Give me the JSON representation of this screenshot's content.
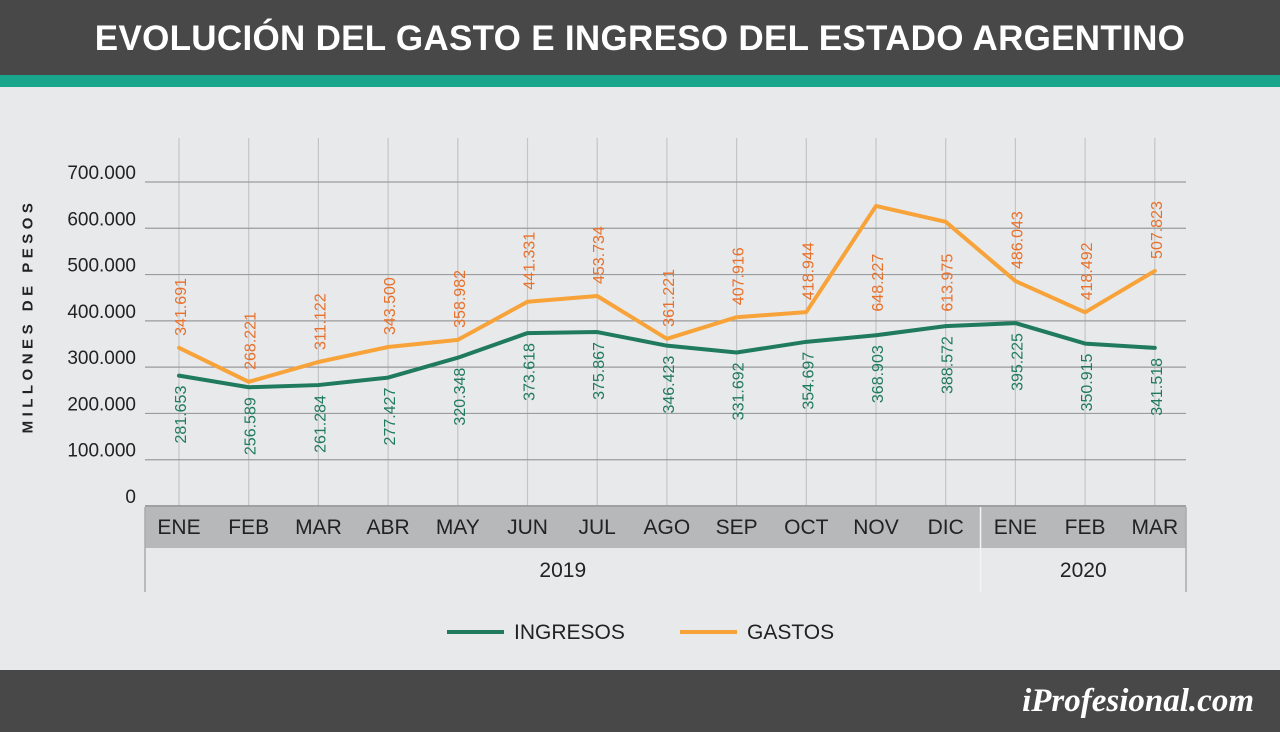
{
  "colors": {
    "header": "#484848",
    "accent": "#1aa58d",
    "background": "#e8e9ea",
    "ingresos": "#1f7a5e",
    "gastos": "#f7a33a",
    "gastos_label": "#e8702a",
    "ingresos_label": "#1f7a5e",
    "month_band": "#b7b8ba"
  },
  "title": "EVOLUCIÓN DEL GASTO E INGRESO DEL ESTADO ARGENTINO",
  "brand": "iProfesional.com",
  "chart_data": {
    "type": "line",
    "title": "EVOLUCIÓN DEL GASTO E INGRESO DEL ESTADO ARGENTINO",
    "ylabel": "MILLONES DE PESOS",
    "xlabel": "",
    "ylim": [
      0,
      700000
    ],
    "yticks": [
      0,
      100000,
      200000,
      300000,
      400000,
      500000,
      600000,
      700000
    ],
    "ytick_labels": [
      "0",
      "100.000",
      "200.000",
      "300.000",
      "400.000",
      "500.000",
      "600.000",
      "700.000"
    ],
    "grid": true,
    "legend_position": "bottom-center",
    "categories": [
      "ENE",
      "FEB",
      "MAR",
      "ABR",
      "MAY",
      "JUN",
      "JUL",
      "AGO",
      "SEP",
      "OCT",
      "NOV",
      "DIC",
      "ENE",
      "FEB",
      "MAR"
    ],
    "year_groups": [
      {
        "label": "2019",
        "count": 12
      },
      {
        "label": "2020",
        "count": 3
      }
    ],
    "series": [
      {
        "name": "INGRESOS",
        "values": [
          281653,
          256589,
          261284,
          277427,
          320348,
          373618,
          375867,
          346423,
          331692,
          354697,
          368903,
          388572,
          395225,
          350915,
          341518
        ],
        "labels": [
          "281.653",
          "256.589",
          "261.284",
          "277.427",
          "320.348",
          "373.618",
          "375.867",
          "346.423",
          "331.692",
          "354.697",
          "368.903",
          "388.572",
          "395.225",
          "350.915",
          "341.518"
        ]
      },
      {
        "name": "GASTOS",
        "values": [
          341691,
          268221,
          311122,
          343500,
          358982,
          441331,
          453734,
          361221,
          407916,
          418944,
          648227,
          613975,
          486043,
          418492,
          507823
        ],
        "labels": [
          "341.691",
          "268.221",
          "311.122",
          "343.500",
          "358.982",
          "441.331",
          "453.734",
          "361.221",
          "407.916",
          "418.944",
          "648.227",
          "613.975",
          "486.043",
          "418.492",
          "507.823"
        ]
      }
    ]
  }
}
